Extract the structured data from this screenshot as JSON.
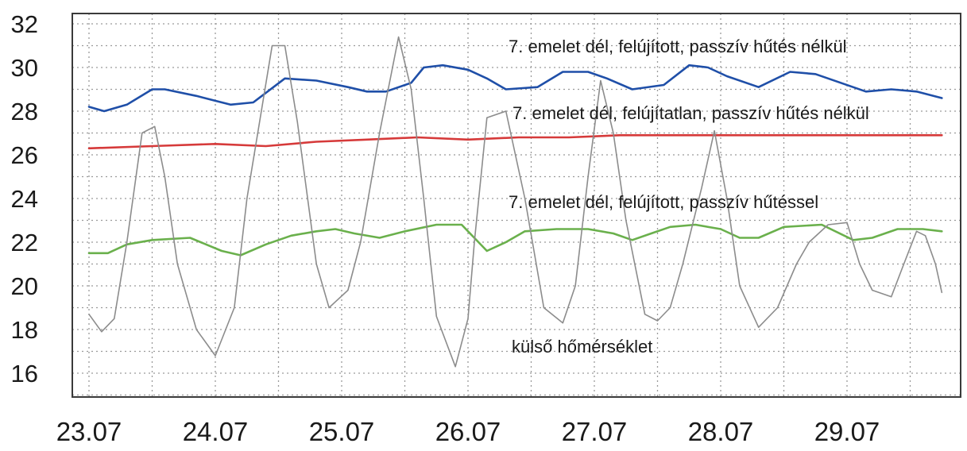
{
  "chart_data": {
    "type": "line",
    "title": "",
    "xlabel": "",
    "ylabel": "",
    "ylim": [
      15,
      33
    ],
    "yticks": [
      "16",
      "18",
      "20",
      "22",
      "24",
      "26",
      "28",
      "30",
      "32"
    ],
    "xticks": [
      "23.07",
      "24.07",
      "25.07",
      "26.07",
      "27.07",
      "28.07",
      "29.07"
    ],
    "xlim_days": [
      -0.12,
      6.75
    ],
    "grid": true,
    "series": [
      {
        "name": "7. emelet dél, felújított, passzív hűtés nélkül",
        "color": "#1f4fa8",
        "x_days": [
          0,
          0.12,
          0.3,
          0.5,
          0.6,
          0.85,
          1.12,
          1.3,
          1.55,
          1.8,
          2.05,
          2.2,
          2.35,
          2.55,
          2.65,
          2.8,
          3.0,
          3.15,
          3.3,
          3.55,
          3.75,
          3.95,
          4.1,
          4.3,
          4.55,
          4.75,
          4.9,
          5.05,
          5.3,
          5.55,
          5.75,
          5.95,
          6.15,
          6.35,
          6.55,
          6.75
        ],
        "y": [
          28.2,
          28.0,
          28.3,
          29.0,
          29.0,
          28.7,
          28.3,
          28.4,
          29.5,
          29.4,
          29.1,
          28.9,
          28.9,
          29.3,
          30.0,
          30.1,
          29.9,
          29.5,
          29.0,
          29.1,
          29.8,
          29.8,
          29.5,
          29.0,
          29.2,
          30.1,
          30.0,
          29.6,
          29.1,
          29.8,
          29.7,
          29.3,
          28.9,
          29.0,
          28.9,
          28.6
        ]
      },
      {
        "name": "7. emelet dél, felújítatlan, passzív hűtés nélkül",
        "color": "#d63a3a",
        "x_days": [
          0,
          0.5,
          1.0,
          1.4,
          1.8,
          2.2,
          2.6,
          3.0,
          3.4,
          3.8,
          4.2,
          4.6,
          5.0,
          5.4,
          5.8,
          6.2,
          6.6,
          6.75
        ],
        "y": [
          26.3,
          26.4,
          26.5,
          26.4,
          26.6,
          26.7,
          26.8,
          26.7,
          26.8,
          26.8,
          26.9,
          26.9,
          26.9,
          26.9,
          26.9,
          26.9,
          26.9,
          26.9
        ]
      },
      {
        "name": "7. emelet dél, felújított, passzív hűtéssel",
        "color": "#6ab04c",
        "x_days": [
          0,
          0.15,
          0.3,
          0.5,
          0.8,
          1.05,
          1.2,
          1.4,
          1.6,
          1.8,
          1.95,
          2.1,
          2.3,
          2.5,
          2.75,
          2.95,
          3.15,
          3.3,
          3.45,
          3.7,
          3.95,
          4.15,
          4.3,
          4.45,
          4.6,
          4.8,
          5.0,
          5.15,
          5.3,
          5.5,
          5.8,
          6.05,
          6.2,
          6.4,
          6.6,
          6.75
        ],
        "y": [
          21.5,
          21.5,
          21.9,
          22.1,
          22.2,
          21.6,
          21.4,
          21.9,
          22.3,
          22.5,
          22.6,
          22.4,
          22.2,
          22.5,
          22.8,
          22.8,
          21.6,
          22.0,
          22.5,
          22.6,
          22.6,
          22.4,
          22.1,
          22.4,
          22.7,
          22.8,
          22.6,
          22.2,
          22.2,
          22.7,
          22.8,
          22.1,
          22.2,
          22.6,
          22.6,
          22.5
        ]
      },
      {
        "name": "külső hőmérséklet",
        "color": "#8c8c8c",
        "x_days": [
          0,
          0.1,
          0.2,
          0.3,
          0.42,
          0.52,
          0.6,
          0.7,
          0.85,
          1.0,
          1.15,
          1.25,
          1.45,
          1.55,
          1.65,
          1.8,
          1.9,
          2.05,
          2.15,
          2.3,
          2.45,
          2.55,
          2.65,
          2.75,
          2.9,
          3.0,
          3.05,
          3.15,
          3.3,
          3.45,
          3.6,
          3.75,
          3.85,
          3.95,
          4.05,
          4.15,
          4.25,
          4.4,
          4.5,
          4.6,
          4.7,
          4.85,
          4.95,
          5.05,
          5.15,
          5.3,
          5.45,
          5.6,
          5.7,
          5.85,
          6.0,
          6.1,
          6.2,
          6.35,
          6.45,
          6.55,
          6.62,
          6.7,
          6.75
        ],
        "y": [
          18.7,
          17.9,
          18.5,
          22.0,
          27.0,
          27.3,
          25.0,
          21.0,
          18.0,
          16.8,
          19.0,
          24.0,
          31.0,
          31.0,
          27.5,
          21.0,
          19.0,
          19.8,
          22.0,
          27.0,
          31.4,
          29.0,
          24.0,
          18.6,
          16.3,
          18.5,
          22.0,
          27.7,
          28.0,
          24.0,
          19.0,
          18.3,
          20.0,
          25.0,
          29.4,
          27.0,
          23.0,
          18.7,
          18.4,
          19.0,
          21.0,
          24.5,
          27.1,
          24.0,
          20.0,
          18.1,
          19.0,
          21.0,
          22.0,
          22.8,
          22.9,
          21.0,
          19.8,
          19.5,
          21.0,
          22.5,
          22.3,
          21.0,
          19.7
        ]
      }
    ],
    "annotations": [
      "7. emelet dél, felújított, passzív hűtés nélkül",
      "7. emelet dél, felújítatlan, passzív hűtés nélkül",
      "7. emelet dél, felújított, passzív hűtéssel",
      "külső hőmérséklet"
    ]
  }
}
